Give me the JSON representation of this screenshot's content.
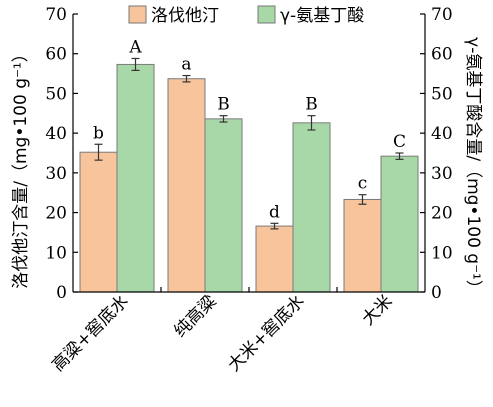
{
  "chart_data": {
    "type": "bar",
    "categories": [
      "高粱+窖底水",
      "纯高粱",
      "大米+窖底水",
      "大米"
    ],
    "series": [
      {
        "name": "洛伐他汀",
        "axis": "left",
        "color": "#f8c49c",
        "values": [
          35.2,
          53.7,
          16.6,
          23.3
        ],
        "errors": [
          2.0,
          0.8,
          0.7,
          1.2
        ],
        "labels": [
          "b",
          "a",
          "d",
          "c"
        ]
      },
      {
        "name": "γ-氨基丁酸",
        "axis": "right",
        "color": "#a9d8a8",
        "values": [
          57.3,
          43.6,
          42.6,
          34.2
        ],
        "errors": [
          1.5,
          0.8,
          1.8,
          0.8
        ],
        "labels": [
          "A",
          "B",
          "B",
          "C"
        ]
      }
    ],
    "ylabel": "洛伐他汀含量/（mg•100 g⁻¹）",
    "y2label": "γ-氨基丁酸含量/（mg•100 g⁻¹）",
    "ylim": [
      0,
      70
    ],
    "y2lim": [
      0,
      70
    ],
    "yticks": [
      "0",
      "10",
      "20",
      "30",
      "40",
      "50",
      "60",
      "70"
    ],
    "y2ticks": [
      "0",
      "10",
      "20",
      "30",
      "40",
      "50",
      "60",
      "70"
    ],
    "legend": "top",
    "grid": false
  }
}
